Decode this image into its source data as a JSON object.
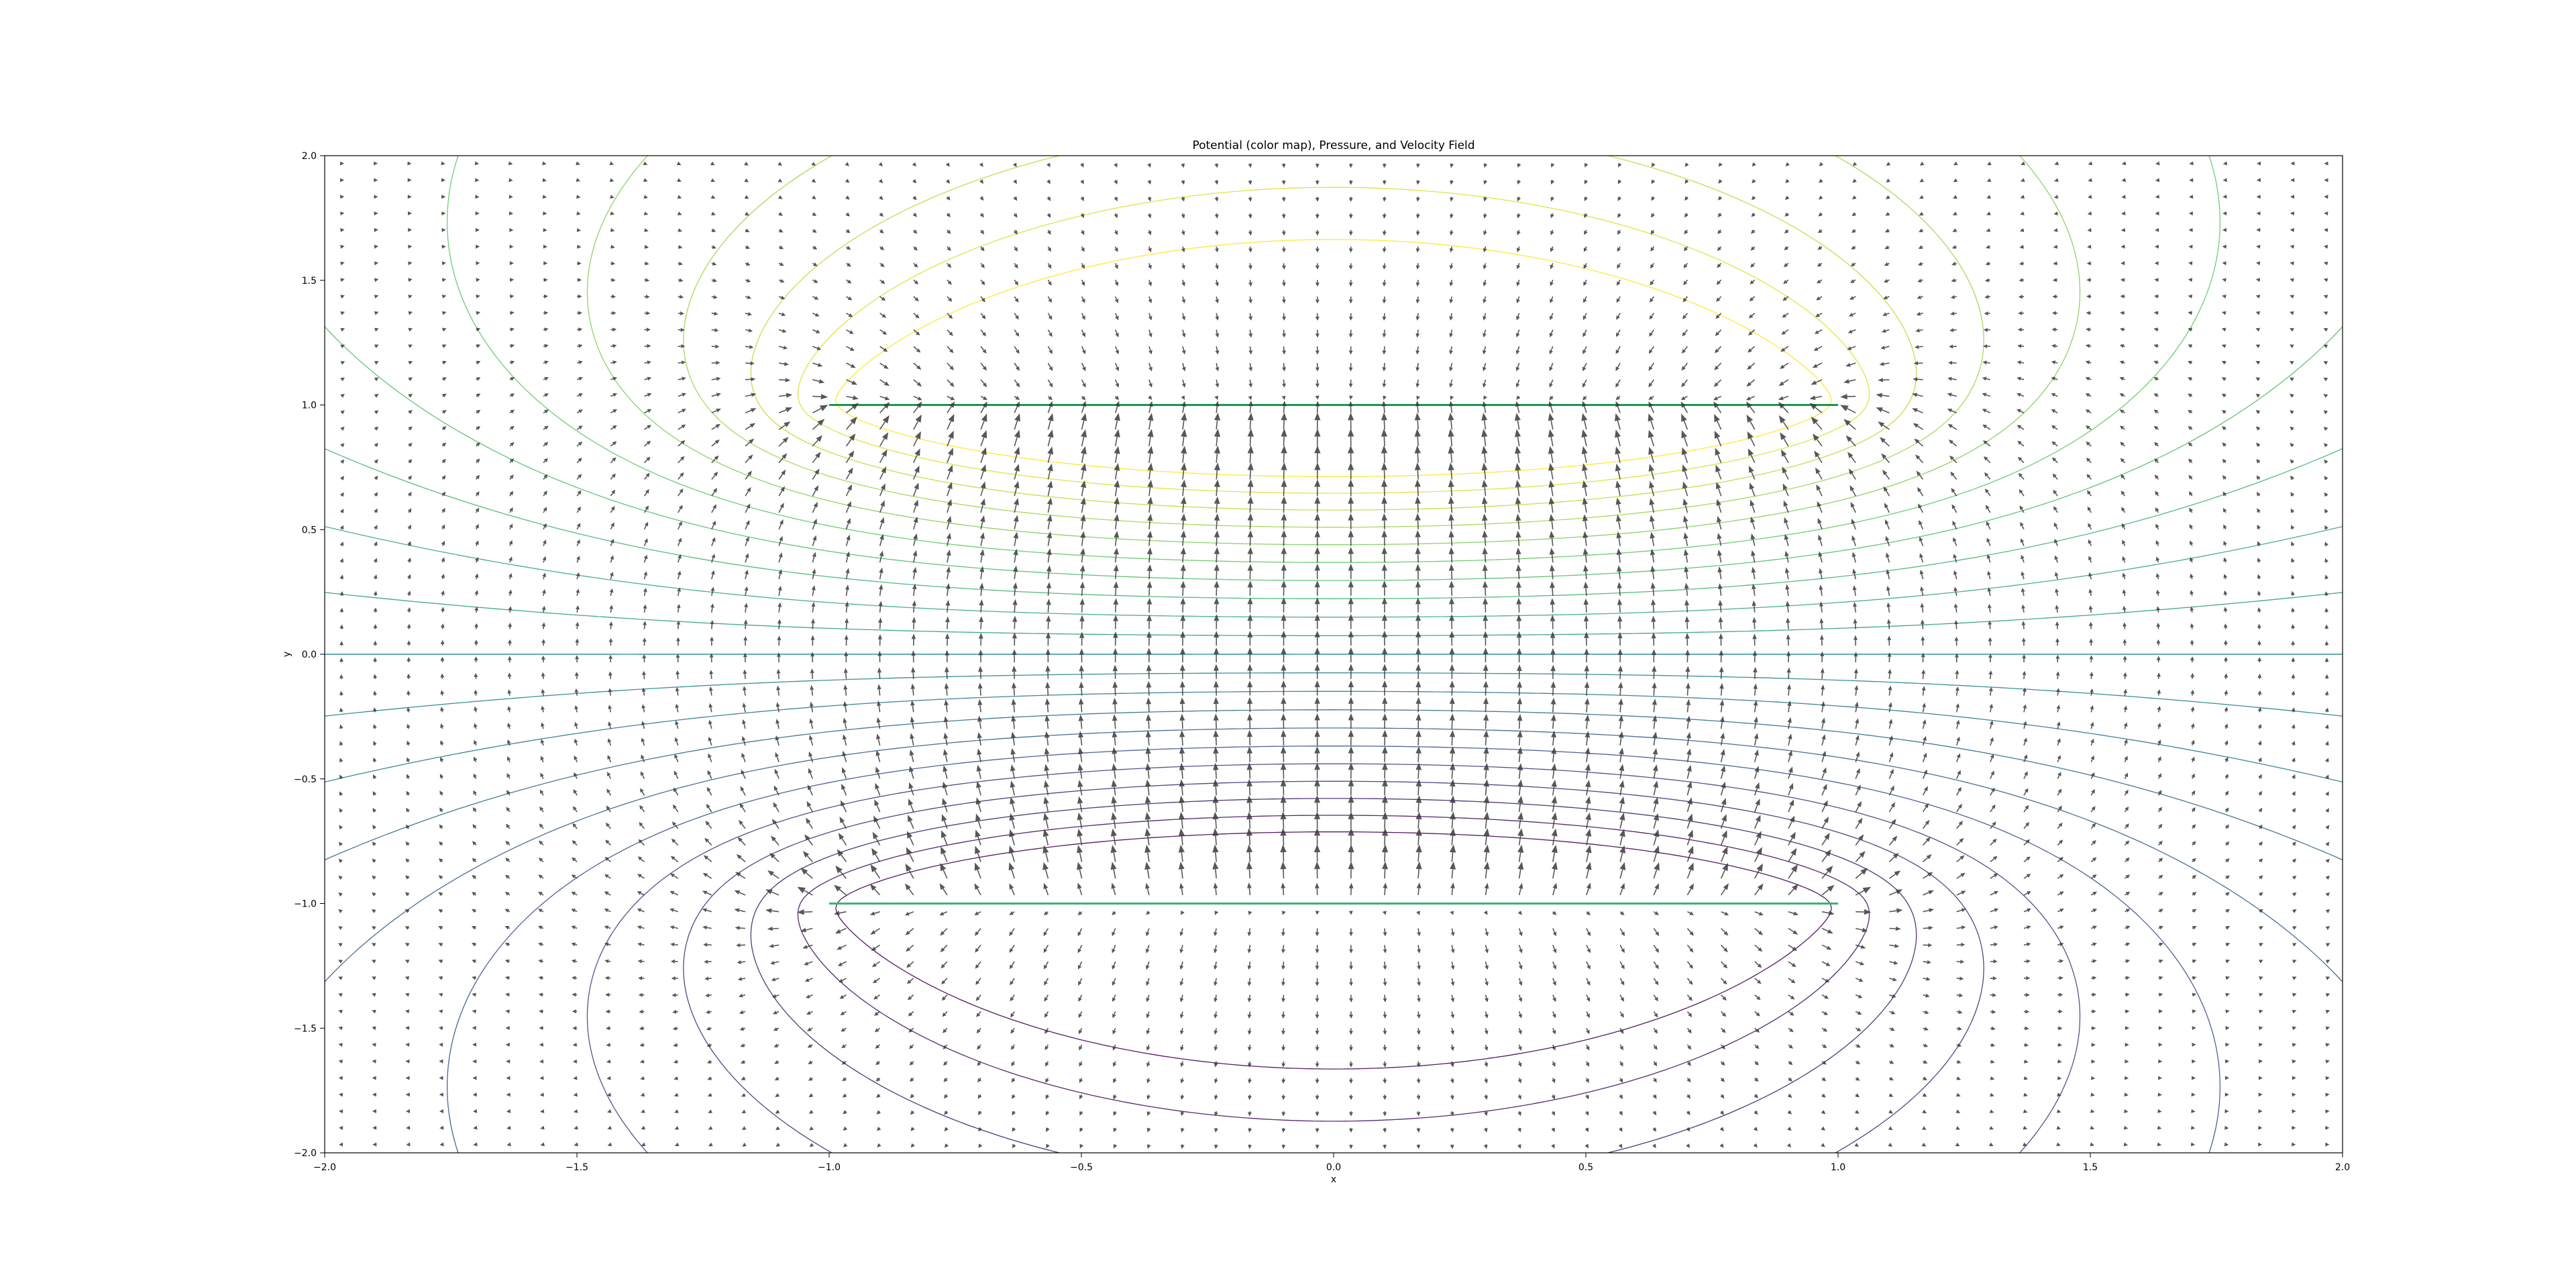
{
  "chart_data": {
    "type": "quiver",
    "title": "Potential (color map), Pressure, and Velocity Field",
    "xlabel": "x",
    "ylabel": "y",
    "xlim": [
      -2.0,
      2.0
    ],
    "ylim": [
      -2.0,
      2.0
    ],
    "grid": false,
    "x_ticks": [
      "−2.0",
      "−1.5",
      "−1.0",
      "−0.5",
      "0.0",
      "0.5",
      "1.0",
      "1.5",
      "2.0"
    ],
    "y_ticks": [
      "−2.0",
      "−1.5",
      "−1.0",
      "−0.5",
      "0.0",
      "0.5",
      "1.0",
      "1.5",
      "2.0"
    ],
    "x_tick_values": [
      -2.0,
      -1.5,
      -1.0,
      -0.5,
      0.0,
      0.5,
      1.0,
      1.5,
      2.0
    ],
    "y_tick_values": [
      -2.0,
      -1.5,
      -1.0,
      -0.5,
      0.0,
      0.5,
      1.0,
      1.5,
      2.0
    ],
    "source_pairs": [
      {
        "y": 1.0,
        "x_from": -1.0,
        "x_to": 1.0
      },
      {
        "y": -1.0,
        "x_from": -1.0,
        "x_to": 1.0
      }
    ],
    "quiver": {
      "grid_step": 0.0667,
      "arrow_color": "#3a3a3a",
      "arrow_opacity": 0.85
    },
    "contours": {
      "colormap": "viridis",
      "colors": [
        "#440154",
        "#3b528b",
        "#21918c",
        "#5ec962",
        "#fde725"
      ]
    }
  }
}
